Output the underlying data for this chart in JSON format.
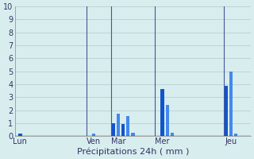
{
  "xlabel": "Précipitations 24h ( mm )",
  "background_color": "#d8eeee",
  "grid_color": "#b0caca",
  "ylim": [
    0,
    10
  ],
  "yticks": [
    0,
    1,
    2,
    3,
    4,
    5,
    6,
    7,
    8,
    9,
    10
  ],
  "xlim": [
    0,
    48
  ],
  "day_labels": [
    "Lun",
    "Ven",
    "Mar",
    "Mer",
    "Jeu"
  ],
  "day_tick_positions": [
    1,
    16,
    21,
    30,
    44
  ],
  "vline_positions": [
    14.5,
    19.5,
    28.5,
    42.5
  ],
  "vline_color": "#445599",
  "bars": [
    {
      "x": 1,
      "height": 0.2,
      "color": "#1155cc"
    },
    {
      "x": 16,
      "height": 0.2,
      "color": "#4488ee"
    },
    {
      "x": 20,
      "height": 1.0,
      "color": "#1155cc"
    },
    {
      "x": 21,
      "height": 1.7,
      "color": "#4488ee"
    },
    {
      "x": 22,
      "height": 0.9,
      "color": "#1155cc"
    },
    {
      "x": 23,
      "height": 1.55,
      "color": "#4488ee"
    },
    {
      "x": 24,
      "height": 0.25,
      "color": "#4488ee"
    },
    {
      "x": 30,
      "height": 3.6,
      "color": "#1155cc"
    },
    {
      "x": 31,
      "height": 2.4,
      "color": "#4488ee"
    },
    {
      "x": 32,
      "height": 0.25,
      "color": "#4488ee"
    },
    {
      "x": 43,
      "height": 3.85,
      "color": "#1155cc"
    },
    {
      "x": 44,
      "height": 5.0,
      "color": "#4488ee"
    },
    {
      "x": 45,
      "height": 0.2,
      "color": "#4488ee"
    }
  ]
}
